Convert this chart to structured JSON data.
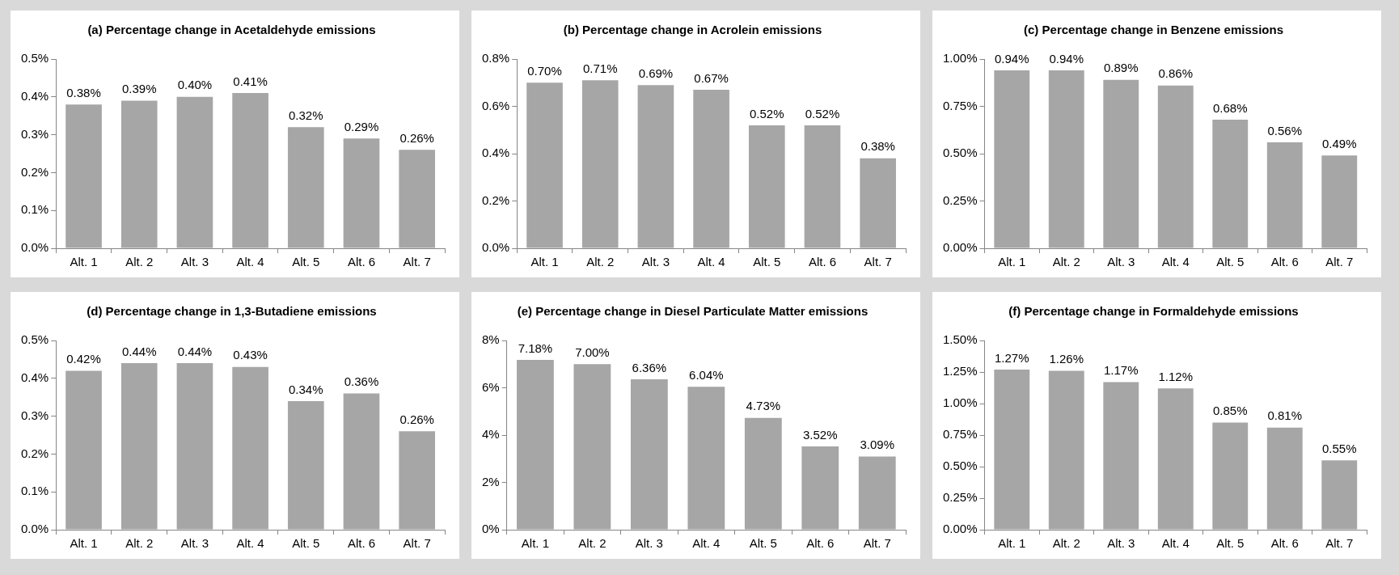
{
  "chart_data": [
    {
      "type": "bar",
      "title": "(a) Percentage change in Acetaldehyde emissions",
      "categories": [
        "Alt. 1",
        "Alt. 2",
        "Alt. 3",
        "Alt. 4",
        "Alt. 5",
        "Alt. 6",
        "Alt. 7"
      ],
      "values": [
        0.38,
        0.39,
        0.4,
        0.41,
        0.32,
        0.29,
        0.26
      ],
      "value_labels": [
        "0.38%",
        "0.39%",
        "0.40%",
        "0.41%",
        "0.32%",
        "0.29%",
        "0.26%"
      ],
      "color": "#a6a6a6",
      "ylim": [
        0,
        0.5
      ],
      "yticks": [
        {
          "value": 0,
          "label": "0.0%"
        },
        {
          "value": 0.1,
          "label": "0.1%"
        },
        {
          "value": 0.2,
          "label": "0.2%"
        },
        {
          "value": 0.3,
          "label": "0.3%"
        },
        {
          "value": 0.4,
          "label": "0.4%"
        },
        {
          "value": 0.5,
          "label": "0.5%"
        }
      ]
    },
    {
      "type": "bar",
      "title": "(b) Percentage change in Acrolein emissions",
      "categories": [
        "Alt. 1",
        "Alt. 2",
        "Alt. 3",
        "Alt. 4",
        "Alt. 5",
        "Alt. 6",
        "Alt. 7"
      ],
      "values": [
        0.7,
        0.71,
        0.69,
        0.67,
        0.52,
        0.52,
        0.38
      ],
      "value_labels": [
        "0.70%",
        "0.71%",
        "0.69%",
        "0.67%",
        "0.52%",
        "0.52%",
        "0.38%"
      ],
      "color": "#a6a6a6",
      "ylim": [
        0,
        0.8
      ],
      "yticks": [
        {
          "value": 0,
          "label": "0.0%"
        },
        {
          "value": 0.2,
          "label": "0.2%"
        },
        {
          "value": 0.4,
          "label": "0.4%"
        },
        {
          "value": 0.6,
          "label": "0.6%"
        },
        {
          "value": 0.8,
          "label": "0.8%"
        }
      ]
    },
    {
      "type": "bar",
      "title": "(c) Percentage change in Benzene emissions",
      "categories": [
        "Alt. 1",
        "Alt. 2",
        "Alt. 3",
        "Alt. 4",
        "Alt. 5",
        "Alt. 6",
        "Alt. 7"
      ],
      "values": [
        0.94,
        0.94,
        0.89,
        0.86,
        0.68,
        0.56,
        0.49
      ],
      "value_labels": [
        "0.94%",
        "0.94%",
        "0.89%",
        "0.86%",
        "0.68%",
        "0.56%",
        "0.49%"
      ],
      "color": "#a6a6a6",
      "ylim": [
        0,
        1
      ],
      "yticks": [
        {
          "value": 0,
          "label": "0.00%"
        },
        {
          "value": 0.25,
          "label": "0.25%"
        },
        {
          "value": 0.5,
          "label": "0.50%"
        },
        {
          "value": 0.75,
          "label": "0.75%"
        },
        {
          "value": 1,
          "label": "1.00%"
        }
      ]
    },
    {
      "type": "bar",
      "title": "(d) Percentage change in 1,3-Butadiene emissions",
      "categories": [
        "Alt. 1",
        "Alt. 2",
        "Alt. 3",
        "Alt. 4",
        "Alt. 5",
        "Alt. 6",
        "Alt. 7"
      ],
      "values": [
        0.42,
        0.44,
        0.44,
        0.43,
        0.34,
        0.36,
        0.26
      ],
      "value_labels": [
        "0.42%",
        "0.44%",
        "0.44%",
        "0.43%",
        "0.34%",
        "0.36%",
        "0.26%"
      ],
      "color": "#a6a6a6",
      "ylim": [
        0,
        0.5
      ],
      "yticks": [
        {
          "value": 0,
          "label": "0.0%"
        },
        {
          "value": 0.1,
          "label": "0.1%"
        },
        {
          "value": 0.2,
          "label": "0.2%"
        },
        {
          "value": 0.3,
          "label": "0.3%"
        },
        {
          "value": 0.4,
          "label": "0.4%"
        },
        {
          "value": 0.5,
          "label": "0.5%"
        }
      ]
    },
    {
      "type": "bar",
      "title": "(e) Percentage change in Diesel Particulate Matter emissions",
      "categories": [
        "Alt. 1",
        "Alt. 2",
        "Alt. 3",
        "Alt. 4",
        "Alt. 5",
        "Alt. 6",
        "Alt. 7"
      ],
      "values": [
        7.18,
        7.0,
        6.36,
        6.04,
        4.73,
        3.52,
        3.09
      ],
      "value_labels": [
        "7.18%",
        "7.00%",
        "6.36%",
        "6.04%",
        "4.73%",
        "3.52%",
        "3.09%"
      ],
      "color": "#a6a6a6",
      "ylim": [
        0,
        8
      ],
      "yticks": [
        {
          "value": 0,
          "label": "0%"
        },
        {
          "value": 2,
          "label": "2%"
        },
        {
          "value": 4,
          "label": "4%"
        },
        {
          "value": 6,
          "label": "6%"
        },
        {
          "value": 8,
          "label": "8%"
        }
      ]
    },
    {
      "type": "bar",
      "title": "(f) Percentage change in Formaldehyde emissions",
      "categories": [
        "Alt. 1",
        "Alt. 2",
        "Alt. 3",
        "Alt. 4",
        "Alt. 5",
        "Alt. 6",
        "Alt. 7"
      ],
      "values": [
        1.27,
        1.26,
        1.17,
        1.12,
        0.85,
        0.81,
        0.55
      ],
      "value_labels": [
        "1.27%",
        "1.26%",
        "1.17%",
        "1.12%",
        "0.85%",
        "0.81%",
        "0.55%"
      ],
      "color": "#a6a6a6",
      "ylim": [
        0,
        1.5
      ],
      "yticks": [
        {
          "value": 0,
          "label": "0.00%"
        },
        {
          "value": 0.25,
          "label": "0.25%"
        },
        {
          "value": 0.5,
          "label": "0.50%"
        },
        {
          "value": 0.75,
          "label": "0.75%"
        },
        {
          "value": 1,
          "label": "1.00%"
        },
        {
          "value": 1.25,
          "label": "1.25%"
        },
        {
          "value": 1.5,
          "label": "1.50%"
        }
      ]
    }
  ]
}
